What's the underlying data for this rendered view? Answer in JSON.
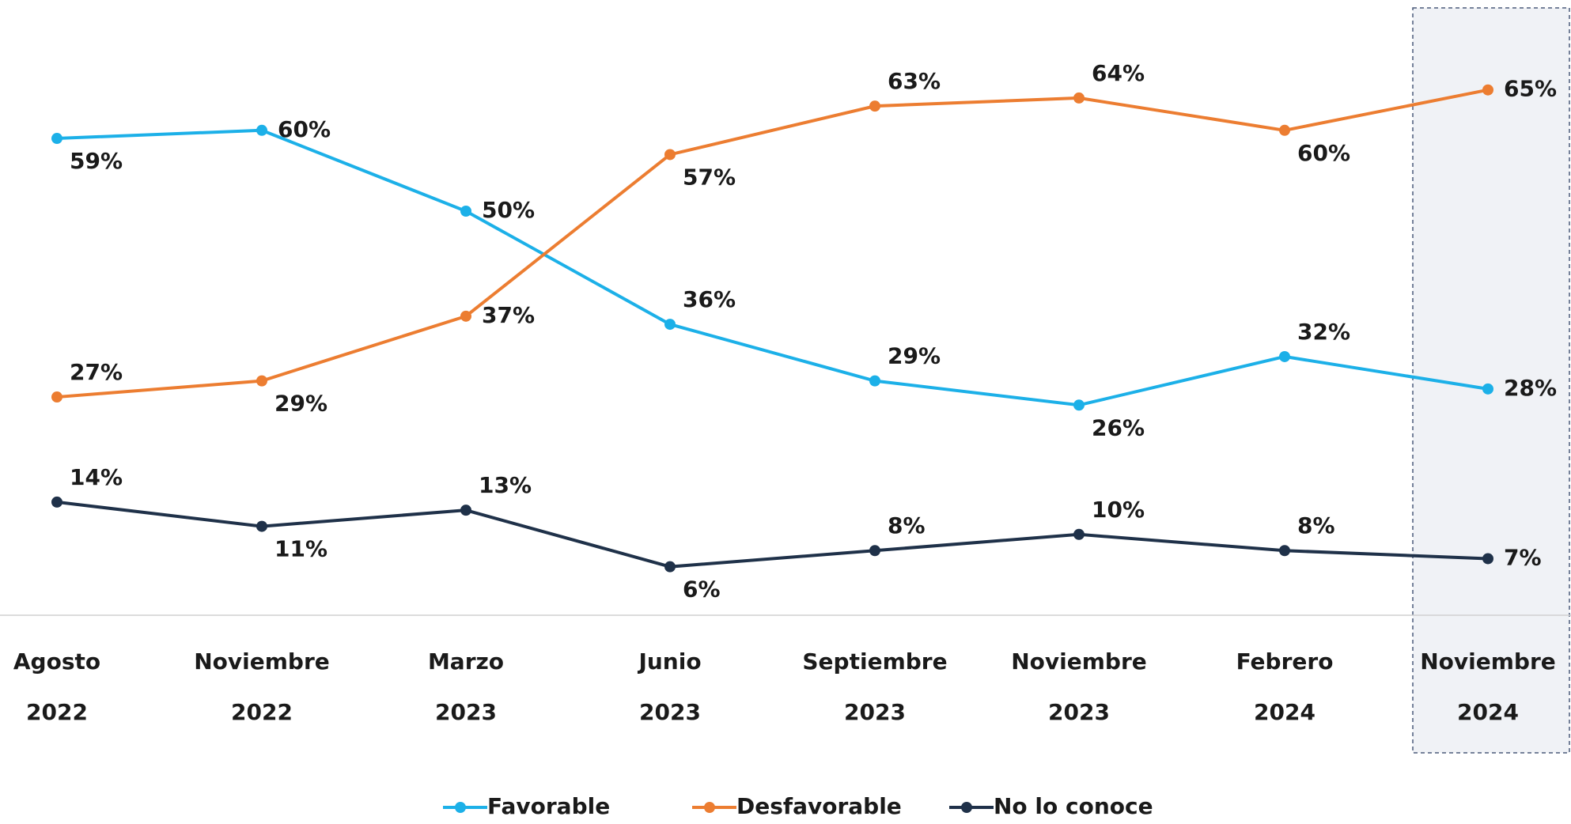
{
  "chart_data": {
    "type": "line",
    "categories": [
      [
        "Agosto",
        "2022"
      ],
      [
        "Noviembre",
        "2022"
      ],
      [
        "Marzo",
        "2023"
      ],
      [
        "Junio",
        "2023"
      ],
      [
        "Septiembre",
        "2023"
      ],
      [
        "Noviembre",
        "2023"
      ],
      [
        "Febrero",
        "2024"
      ],
      [
        "Noviembre",
        "2024"
      ]
    ],
    "series": [
      {
        "name": "Favorable",
        "color": "#1cb0e8",
        "values": [
          59,
          60,
          50,
          36,
          29,
          26,
          32,
          28
        ],
        "value_labels": [
          "59%",
          "60%",
          "50%",
          "36%",
          "29%",
          "26%",
          "32%",
          "28%"
        ]
      },
      {
        "name": "Desfavorable",
        "color": "#ec7d31",
        "values": [
          27,
          29,
          37,
          57,
          63,
          64,
          60,
          65
        ],
        "value_labels": [
          "27%",
          "29%",
          "37%",
          "57%",
          "63%",
          "64%",
          "60%",
          "65%"
        ]
      },
      {
        "name": "No lo conoce",
        "color": "#1f3149",
        "values": [
          14,
          11,
          13,
          6,
          8,
          10,
          8,
          7
        ],
        "value_labels": [
          "14%",
          "11%",
          "13%",
          "6%",
          "8%",
          "10%",
          "8%",
          "7%"
        ]
      }
    ]
  }
}
